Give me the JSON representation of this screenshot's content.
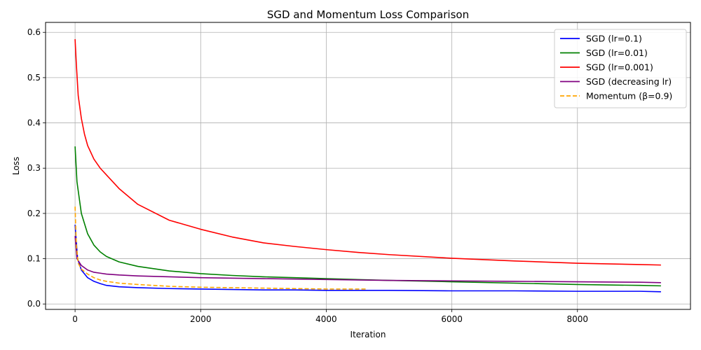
{
  "chart_data": {
    "type": "line",
    "title": "SGD and Momentum Loss Comparison",
    "xlabel": "Iteration",
    "ylabel": "Loss",
    "xlim": [
      -470,
      9800
    ],
    "ylim": [
      -0.012,
      0.622
    ],
    "xticks": [
      0,
      2000,
      4000,
      6000,
      8000
    ],
    "yticks": [
      0.0,
      0.1,
      0.2,
      0.3,
      0.4,
      0.5,
      0.6
    ],
    "ytick_labels": [
      "0.0",
      "0.1",
      "0.2",
      "0.3",
      "0.4",
      "0.5",
      "0.6"
    ],
    "grid": true,
    "legend_position": "top-right",
    "series": [
      {
        "name": "SGD (lr=0.1)",
        "color": "#0000ff",
        "dash": "solid",
        "x": [
          0,
          40,
          100,
          200,
          300,
          400,
          500,
          700,
          1000,
          1500,
          2000,
          2500,
          3000,
          3500,
          4000,
          5000,
          6000,
          7000,
          8000,
          9000,
          9330
        ],
        "y": [
          0.175,
          0.1,
          0.075,
          0.058,
          0.05,
          0.045,
          0.041,
          0.038,
          0.036,
          0.034,
          0.033,
          0.032,
          0.031,
          0.031,
          0.03,
          0.03,
          0.029,
          0.029,
          0.028,
          0.028,
          0.027
        ]
      },
      {
        "name": "SGD (lr=0.01)",
        "color": "#008000",
        "dash": "solid",
        "x": [
          0,
          30,
          100,
          200,
          300,
          400,
          500,
          700,
          1000,
          1500,
          2000,
          2500,
          3000,
          3500,
          4000,
          5000,
          6000,
          7000,
          8000,
          9000,
          9330
        ],
        "y": [
          0.348,
          0.27,
          0.2,
          0.155,
          0.13,
          0.115,
          0.105,
          0.093,
          0.083,
          0.073,
          0.067,
          0.063,
          0.06,
          0.058,
          0.056,
          0.052,
          0.049,
          0.046,
          0.043,
          0.041,
          0.04
        ]
      },
      {
        "name": "SGD (lr=0.001)",
        "color": "#ff0000",
        "dash": "solid",
        "x": [
          0,
          20,
          50,
          100,
          150,
          200,
          300,
          400,
          500,
          700,
          1000,
          1500,
          2000,
          2500,
          3000,
          3500,
          4000,
          4500,
          5000,
          6000,
          7000,
          8000,
          9000,
          9330
        ],
        "y": [
          0.585,
          0.53,
          0.46,
          0.41,
          0.375,
          0.35,
          0.32,
          0.3,
          0.285,
          0.255,
          0.22,
          0.185,
          0.165,
          0.148,
          0.135,
          0.127,
          0.12,
          0.114,
          0.109,
          0.101,
          0.095,
          0.09,
          0.087,
          0.086
        ]
      },
      {
        "name": "SGD (decreasing lr)",
        "color": "#800080",
        "dash": "solid",
        "x": [
          0,
          30,
          100,
          200,
          300,
          400,
          500,
          700,
          1000,
          1500,
          2000,
          3000,
          4000,
          5000,
          6000,
          7000,
          8000,
          9000,
          9330
        ],
        "y": [
          0.15,
          0.1,
          0.085,
          0.075,
          0.07,
          0.068,
          0.066,
          0.064,
          0.062,
          0.06,
          0.058,
          0.056,
          0.054,
          0.052,
          0.051,
          0.05,
          0.049,
          0.048,
          0.047
        ]
      },
      {
        "name": "Momentum (β=0.9)",
        "color": "#ffa500",
        "dash": "dashed",
        "x": [
          0,
          20,
          50,
          100,
          200,
          300,
          400,
          500,
          700,
          1000,
          1500,
          2000,
          2500,
          3000,
          3500,
          4000,
          4300,
          4650
        ],
        "y": [
          0.215,
          0.13,
          0.09,
          0.077,
          0.066,
          0.058,
          0.053,
          0.05,
          0.046,
          0.043,
          0.039,
          0.037,
          0.036,
          0.035,
          0.034,
          0.033,
          0.033,
          0.033
        ]
      }
    ]
  }
}
